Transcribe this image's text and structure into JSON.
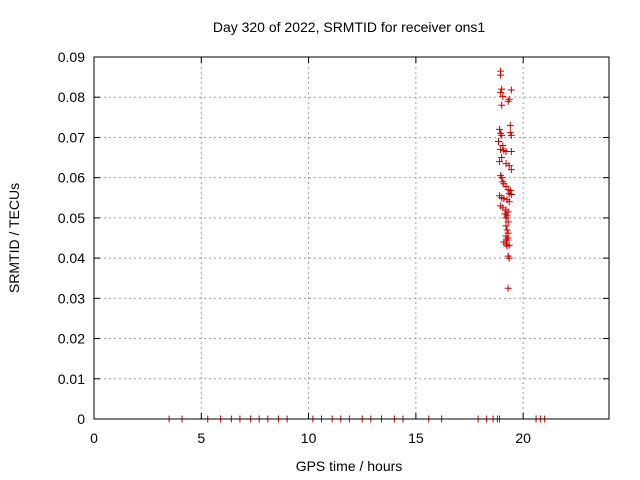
{
  "chart_data": {
    "type": "scatter",
    "title": "Day 320 of 2022, SRMTID for receiver ons1",
    "xlabel": "GPS time / hours",
    "ylabel": "SRMTID / TECUs",
    "xlim": [
      0,
      24
    ],
    "ylim": [
      0,
      0.09
    ],
    "xticks": [
      0,
      5,
      10,
      15,
      20
    ],
    "xtick_labels": [
      "0",
      "5",
      "10",
      "15",
      "20"
    ],
    "yticks": [
      0,
      0.01,
      0.02,
      0.03,
      0.04,
      0.05,
      0.06,
      0.07,
      0.08,
      0.09
    ],
    "ytick_labels": [
      "0",
      "0.01",
      "0.02",
      "0.03",
      "0.04",
      "0.05",
      "0.06",
      "0.07",
      "0.08",
      "0.09"
    ],
    "grid": true,
    "marker": "+",
    "marker_color": "#cc0000",
    "series": [
      {
        "name": "ons1",
        "points": [
          [
            3.5,
            0
          ],
          [
            4.1,
            0
          ],
          [
            5.3,
            0
          ],
          [
            5.9,
            0
          ],
          [
            6.4,
            0
          ],
          [
            6.8,
            0
          ],
          [
            7.3,
            0
          ],
          [
            7.7,
            0
          ],
          [
            8.1,
            0
          ],
          [
            8.6,
            0
          ],
          [
            9.0,
            0
          ],
          [
            10.2,
            0
          ],
          [
            10.6,
            0
          ],
          [
            11.1,
            0
          ],
          [
            11.5,
            0
          ],
          [
            11.9,
            0
          ],
          [
            12.5,
            0
          ],
          [
            12.9,
            0
          ],
          [
            13.4,
            0
          ],
          [
            14.0,
            0
          ],
          [
            14.4,
            0
          ],
          [
            15.6,
            0
          ],
          [
            16.2,
            0
          ],
          [
            17.9,
            0
          ],
          [
            18.3,
            0
          ],
          [
            18.6,
            0
          ],
          [
            18.8,
            0
          ],
          [
            18.9,
            0
          ],
          [
            20.6,
            0
          ],
          [
            20.8,
            0
          ],
          [
            21.0,
            0
          ],
          [
            18.95,
            0.0865
          ],
          [
            18.95,
            0.0855
          ],
          [
            18.95,
            0.0812
          ],
          [
            19.0,
            0.082
          ],
          [
            19.05,
            0.0802
          ],
          [
            19.0,
            0.078
          ],
          [
            19.35,
            0.0795
          ],
          [
            19.3,
            0.079
          ],
          [
            19.45,
            0.0818
          ],
          [
            18.9,
            0.072
          ],
          [
            18.95,
            0.071
          ],
          [
            19.0,
            0.0705
          ],
          [
            18.85,
            0.069
          ],
          [
            19.05,
            0.068
          ],
          [
            19.4,
            0.073
          ],
          [
            19.4,
            0.0712
          ],
          [
            19.45,
            0.0705
          ],
          [
            18.95,
            0.067
          ],
          [
            19.1,
            0.0668
          ],
          [
            19.2,
            0.0665
          ],
          [
            19.45,
            0.0665
          ],
          [
            19.0,
            0.065
          ],
          [
            18.9,
            0.064
          ],
          [
            19.2,
            0.0635
          ],
          [
            19.35,
            0.063
          ],
          [
            19.45,
            0.062
          ],
          [
            18.95,
            0.0605
          ],
          [
            19.0,
            0.06
          ],
          [
            19.05,
            0.059
          ],
          [
            19.1,
            0.0585
          ],
          [
            19.2,
            0.0578
          ],
          [
            19.3,
            0.057
          ],
          [
            19.4,
            0.0568
          ],
          [
            19.35,
            0.056
          ],
          [
            19.45,
            0.0558
          ],
          [
            18.9,
            0.0555
          ],
          [
            19.0,
            0.055
          ],
          [
            19.1,
            0.0548
          ],
          [
            19.25,
            0.0545
          ],
          [
            19.35,
            0.054
          ],
          [
            18.95,
            0.053
          ],
          [
            19.05,
            0.0525
          ],
          [
            19.2,
            0.052
          ],
          [
            19.3,
            0.0515
          ],
          [
            19.15,
            0.051
          ],
          [
            19.25,
            0.0505
          ],
          [
            19.2,
            0.05
          ],
          [
            19.3,
            0.049
          ],
          [
            19.2,
            0.048
          ],
          [
            19.25,
            0.047
          ],
          [
            19.3,
            0.0462
          ],
          [
            19.2,
            0.0455
          ],
          [
            19.3,
            0.045
          ],
          [
            19.25,
            0.0445
          ],
          [
            19.1,
            0.044
          ],
          [
            19.2,
            0.0435
          ],
          [
            19.35,
            0.0432
          ],
          [
            19.25,
            0.043
          ],
          [
            19.3,
            0.0405
          ],
          [
            19.35,
            0.04
          ],
          [
            19.3,
            0.0325
          ]
        ]
      }
    ]
  }
}
